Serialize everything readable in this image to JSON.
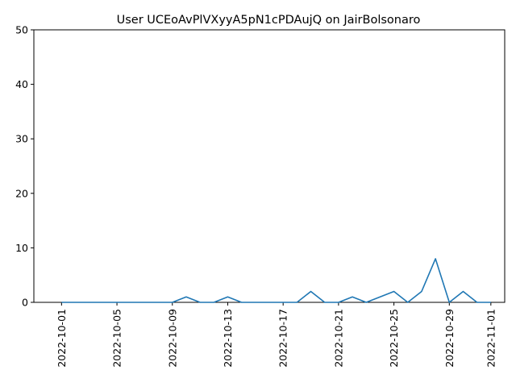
{
  "chart_data": {
    "type": "line",
    "title": "User UCEoAvPlVXyyA5pN1cPDAujQ on JairBolsonaro",
    "xlabel": "",
    "ylabel": "",
    "x_start": "2022-10-01",
    "x": [
      "2022-10-01",
      "2022-10-02",
      "2022-10-03",
      "2022-10-04",
      "2022-10-05",
      "2022-10-06",
      "2022-10-07",
      "2022-10-08",
      "2022-10-09",
      "2022-10-10",
      "2022-10-11",
      "2022-10-12",
      "2022-10-13",
      "2022-10-14",
      "2022-10-15",
      "2022-10-16",
      "2022-10-17",
      "2022-10-18",
      "2022-10-19",
      "2022-10-20",
      "2022-10-21",
      "2022-10-22",
      "2022-10-23",
      "2022-10-24",
      "2022-10-25",
      "2022-10-26",
      "2022-10-27",
      "2022-10-28",
      "2022-10-29",
      "2022-10-30",
      "2022-10-31",
      "2022-11-01"
    ],
    "series": [
      {
        "color": "#1f77b4",
        "values": [
          0,
          0,
          0,
          0,
          0,
          0,
          0,
          0,
          0,
          1,
          0,
          0,
          1,
          0,
          0,
          0,
          0,
          0,
          2,
          0,
          0,
          1,
          0,
          1,
          2,
          0,
          2,
          8,
          0,
          2,
          0,
          0
        ]
      }
    ],
    "xticks": [
      "2022-10-01",
      "2022-10-05",
      "2022-10-09",
      "2022-10-13",
      "2022-10-17",
      "2022-10-21",
      "2022-10-25",
      "2022-10-29",
      "2022-11-01"
    ],
    "yticks": [
      0,
      10,
      20,
      30,
      40,
      50
    ],
    "ylim": [
      0,
      50
    ],
    "xlim": [
      "2022-09-29",
      "2022-11-02"
    ],
    "grid": false,
    "legend": "none"
  }
}
